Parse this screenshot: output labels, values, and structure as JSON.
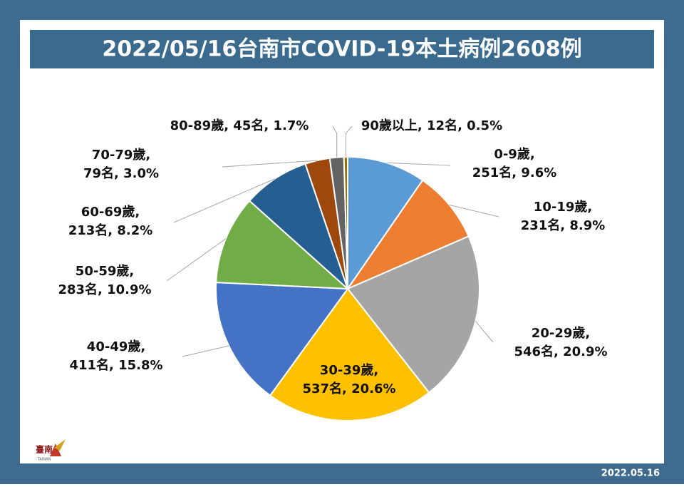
{
  "chart_data": {
    "type": "pie",
    "title": "2022/05/16台南市COVID-19本土病例2608例",
    "labels": [
      [
        "0-9歲,",
        "251名, 9.6%"
      ],
      [
        "10-19歲,",
        "231名, 8.9%"
      ],
      [
        "20-29歲,",
        "546名, 20.9%"
      ],
      [
        "30-39歲,",
        "537名, 20.6%"
      ],
      [
        "40-49歲,",
        "411名, 15.8%"
      ],
      [
        "50-59歲,",
        "283名, 10.9%"
      ],
      [
        "60-69歲,",
        "213名, 8.2%"
      ],
      [
        "70-79歲,",
        "79名, 3.0%"
      ],
      [
        "80-89歲, 45名, 1.7%"
      ],
      [
        "90歲以上, 12名, 0.5%"
      ]
    ],
    "values": [
      251,
      231,
      546,
      537,
      411,
      283,
      213,
      79,
      45,
      12
    ],
    "colors": [
      "#5b9bd5",
      "#ed7d31",
      "#a5a5a5",
      "#ffc000",
      "#4472c4",
      "#70ad47",
      "#255e91",
      "#9e480e",
      "#636363",
      "#997300"
    ],
    "logo": {
      "name": "臺南",
      "subtitle": "TAINAN"
    },
    "date": "2022.05.16"
  }
}
